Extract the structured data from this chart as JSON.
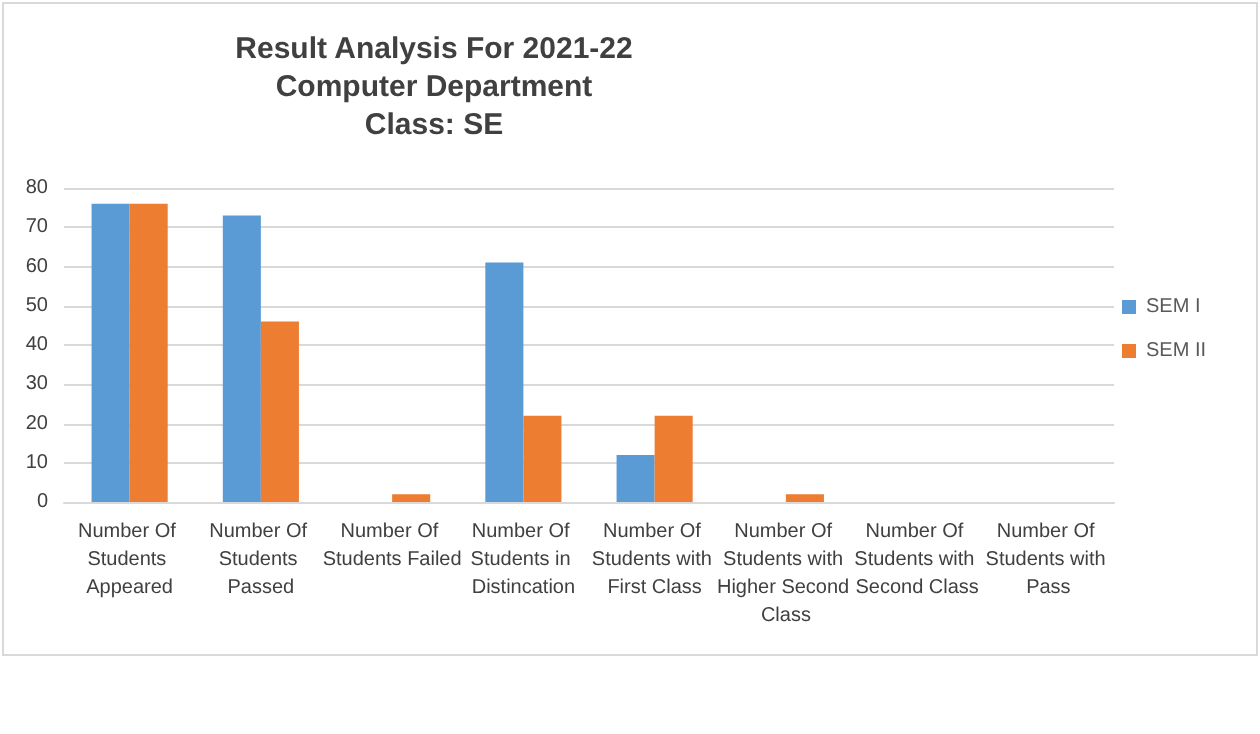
{
  "chart_data": {
    "type": "bar",
    "title": "Result Analysis For 2021-22\nComputer Department\nClass: SE",
    "categories": [
      "Number Of Students Appeared",
      "Number Of Students Passed",
      "Number Of Students Failed",
      "Number Of Students in Distincation",
      "Number Of Students with First Class",
      "Number Of Students with Higher Second Class",
      "Number Of Students with Second Class",
      "Number Of Students with Pass"
    ],
    "series": [
      {
        "name": "SEM I",
        "color": "#5b9bd5",
        "values": [
          76,
          73,
          0,
          61,
          12,
          0,
          0,
          0
        ]
      },
      {
        "name": "SEM II",
        "color": "#ed7d31",
        "values": [
          76,
          46,
          2,
          22,
          22,
          2,
          0,
          0
        ]
      }
    ],
    "ylim": [
      0,
      80
    ],
    "yticks": [
      0,
      10,
      20,
      30,
      40,
      50,
      60,
      70,
      80
    ],
    "grid": "y",
    "legend": "right"
  }
}
